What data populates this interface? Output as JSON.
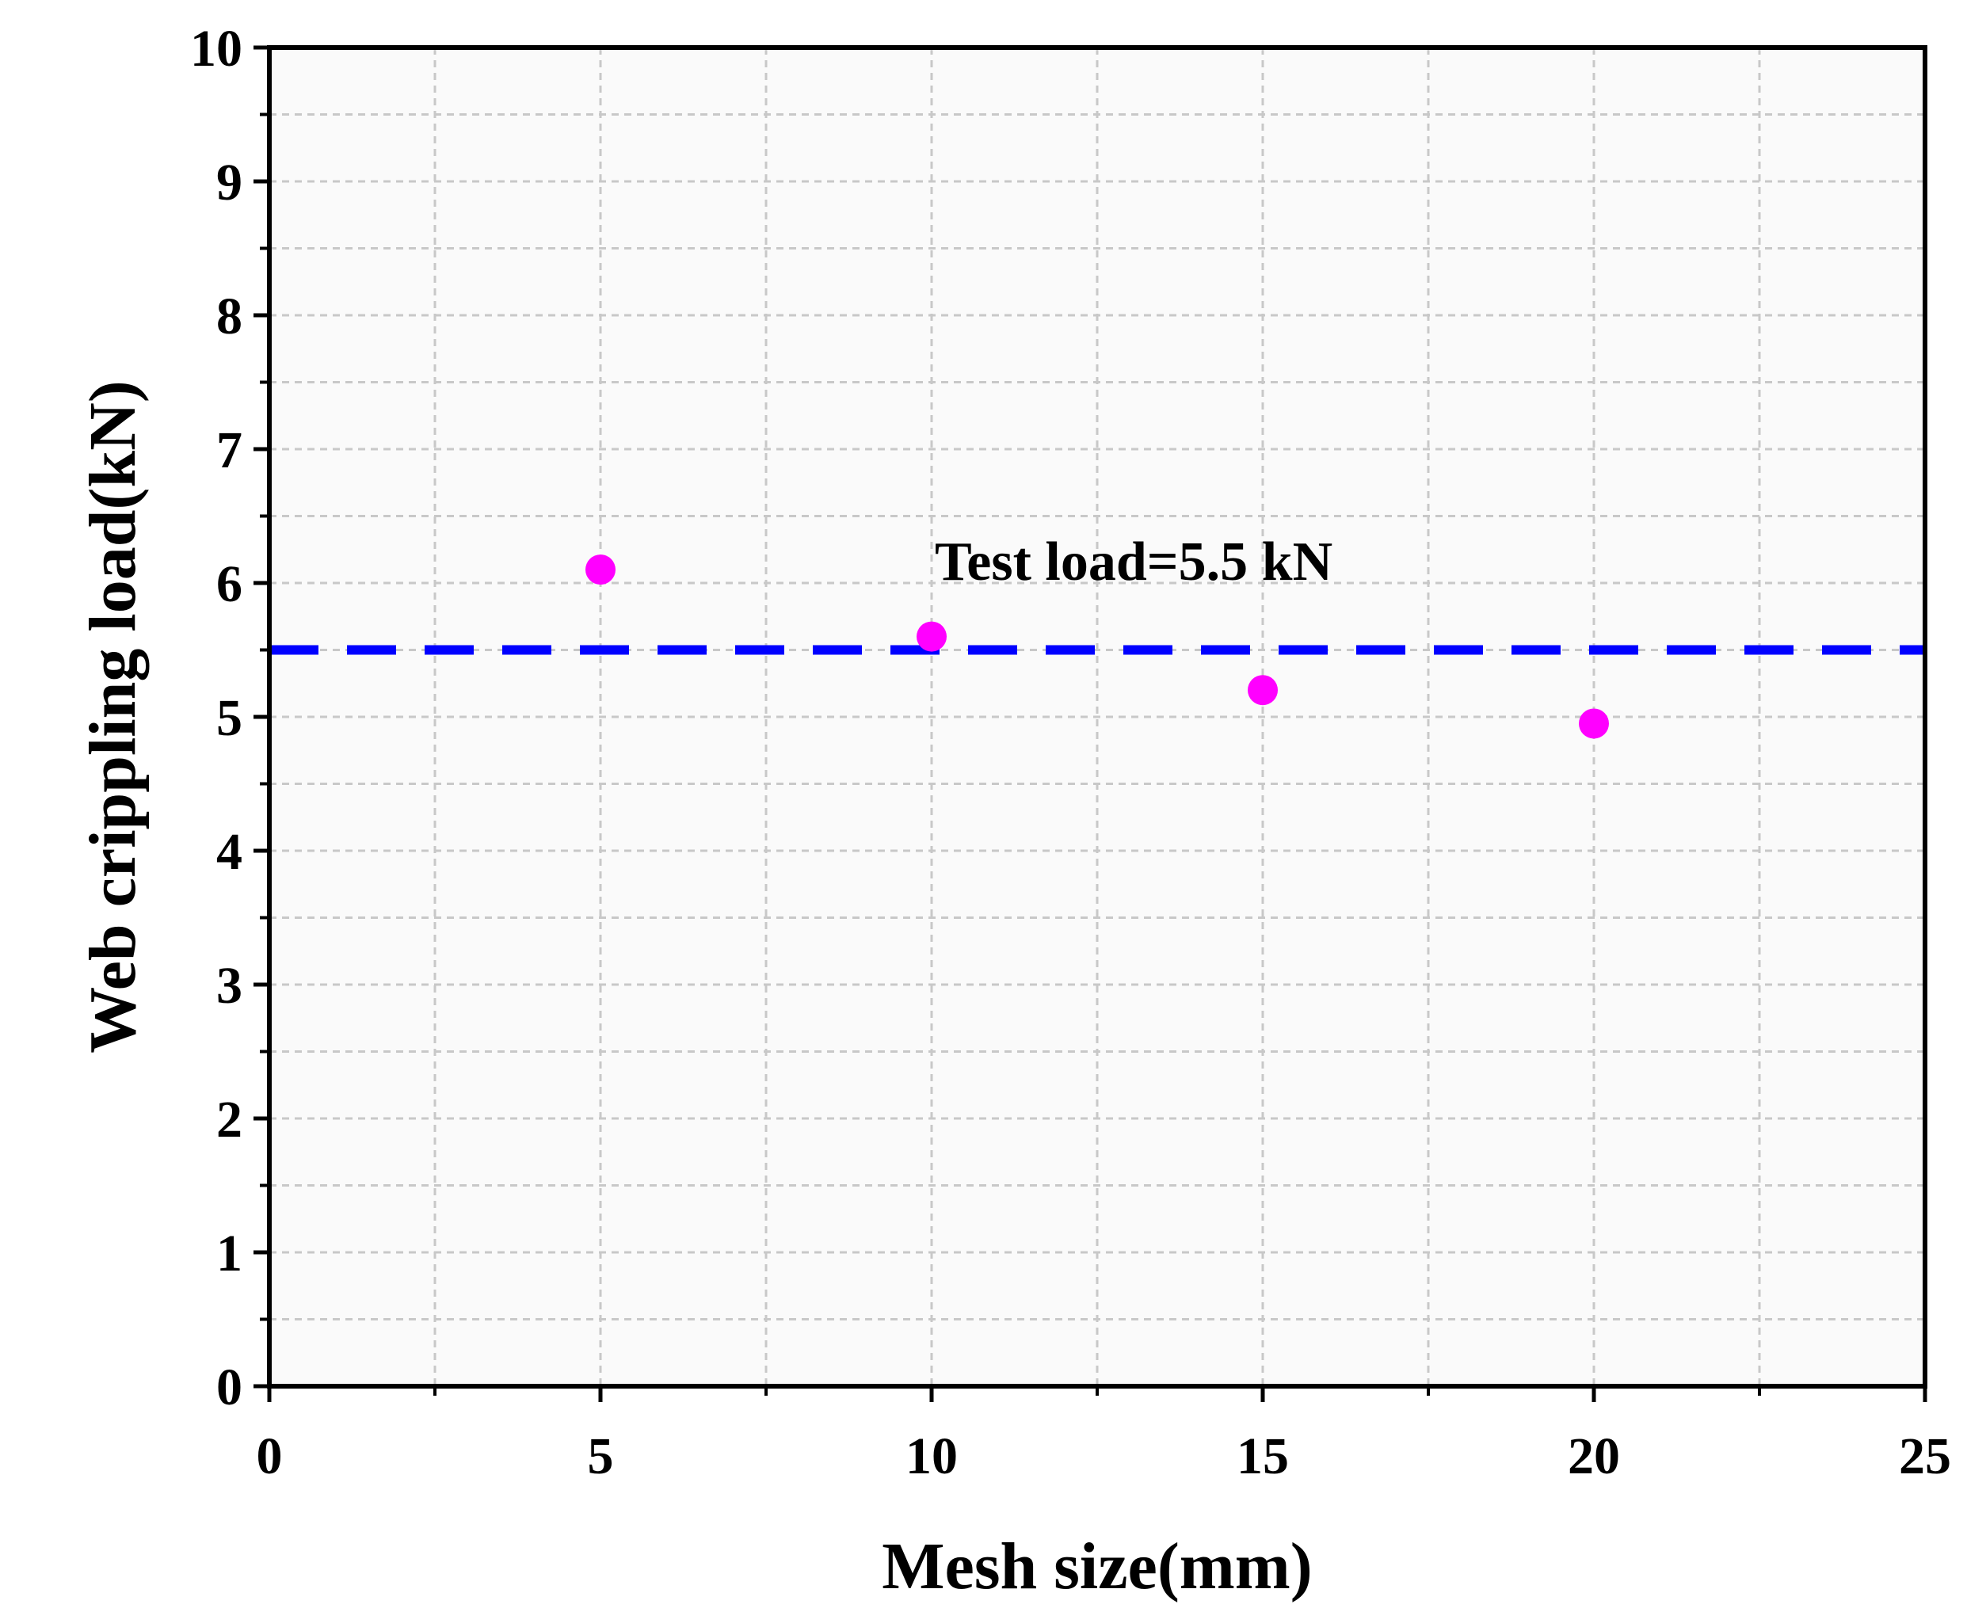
{
  "chart_data": {
    "type": "scatter",
    "xlabel": "Mesh size(mm)",
    "ylabel": "Web crippling load(kN)",
    "xlim": [
      0,
      25
    ],
    "ylim": [
      0,
      10
    ],
    "x_ticks": [
      0,
      5,
      10,
      15,
      20,
      25
    ],
    "y_ticks": [
      0,
      1,
      2,
      3,
      4,
      5,
      6,
      7,
      8,
      9,
      10
    ],
    "grid": true,
    "series": [
      {
        "x": [
          5,
          10,
          15,
          20
        ],
        "y": [
          6.1,
          5.6,
          5.2,
          4.95
        ],
        "color": "#ff00ff",
        "marker": "circle"
      }
    ],
    "reference_line": {
      "y": 5.5,
      "style": "dashed",
      "color": "#0000ff"
    },
    "annotation": "Test load=5.5 kN",
    "colors": {
      "plot_background": "#fafafa",
      "grid": "#c8c8c8",
      "axis": "#000000"
    }
  }
}
